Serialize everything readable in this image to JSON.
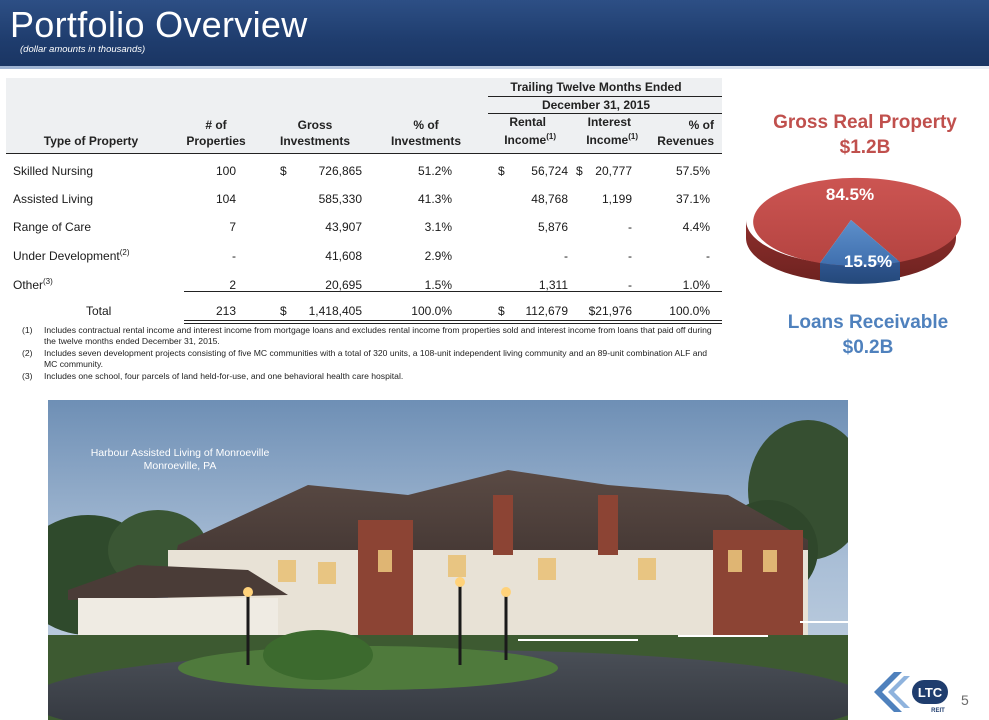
{
  "header": {
    "title": "Portfolio Overview",
    "subtitle": "(dollar amounts in thousands)"
  },
  "table": {
    "period_line1": "Trailing Twelve Months Ended",
    "period_line2": "December 31, 2015",
    "headers": {
      "type": "Type of Property",
      "props_1": "# of",
      "props_2": "Properties",
      "gross_1": "Gross",
      "gross_2": "Investments",
      "pct_1": "% of",
      "pct_2": "Investments",
      "rental_1": "Rental",
      "rental_2": "Income",
      "rental_sup": "(1)",
      "interest_1": "Interest",
      "interest_2": "Income",
      "interest_sup": "(1)",
      "rev_1": "% of",
      "rev_2": "Revenues"
    },
    "rows": [
      {
        "type": "Skilled Nursing",
        "sup": "",
        "props": "100",
        "cur": "$",
        "gross": "726,865",
        "pct": "51.2%",
        "rcur": "$",
        "rental": "56,724",
        "icur": "$",
        "interest": "20,777",
        "rev": "57.5%"
      },
      {
        "type": "Assisted Living",
        "sup": "",
        "props": "104",
        "cur": "",
        "gross": "585,330",
        "pct": "41.3%",
        "rcur": "",
        "rental": "48,768",
        "icur": "",
        "interest": "1,199",
        "rev": "37.1%"
      },
      {
        "type": "Range of Care",
        "sup": "",
        "props": "7",
        "cur": "",
        "gross": "43,907",
        "pct": "3.1%",
        "rcur": "",
        "rental": "5,876",
        "icur": "",
        "interest": "-",
        "rev": "4.4%"
      },
      {
        "type": "Under Development",
        "sup": "(2)",
        "props": "-",
        "cur": "",
        "gross": "41,608",
        "pct": "2.9%",
        "rcur": "",
        "rental": "-",
        "icur": "",
        "interest": "-",
        "rev": "-"
      },
      {
        "type": "Other",
        "sup": "(3)",
        "props": "2",
        "cur": "",
        "gross": "20,695",
        "pct": "1.5%",
        "rcur": "",
        "rental": "1,311",
        "icur": "",
        "interest": "-",
        "rev": "1.0%"
      }
    ],
    "total": {
      "label": "Total",
      "props": "213",
      "cur": "$",
      "gross": "1,418,405",
      "pct": "100.0%",
      "rcur": "$",
      "rental": "112,679",
      "interest": "$21,976",
      "rev": "100.0%"
    }
  },
  "notes": [
    {
      "num": "(1)",
      "text": "Includes contractual rental income and interest income from mortgage loans and excludes rental income from properties sold and interest income from loans that paid off during the twelve months ended December 31, 2015."
    },
    {
      "num": "(2)",
      "text": "Includes seven development projects consisting of five MC communities with a total of 320 units, a 108-unit independent living community and an 89-unit combination ALF and MC community."
    },
    {
      "num": "(3)",
      "text": "Includes one school, four parcels of land held-for-use, and one behavioral health care hospital."
    }
  ],
  "pie": {
    "property_title_1": "Gross Real Property",
    "property_title_2": "$1.2B",
    "loans_title_1": "Loans Receivable",
    "loans_title_2": "$0.2B",
    "slices": [
      {
        "label": "84.5%",
        "value": 84.5,
        "color": "#c0504d"
      },
      {
        "label": "15.5%",
        "value": 15.5,
        "color": "#4f81bd"
      }
    ]
  },
  "photo": {
    "caption_1": "Harbour Assisted Living of Monroeville",
    "caption_2": "Monroeville, PA"
  },
  "footer": {
    "page_number": "5",
    "logo_text": "LTC",
    "logo_sub": "REIT"
  }
}
